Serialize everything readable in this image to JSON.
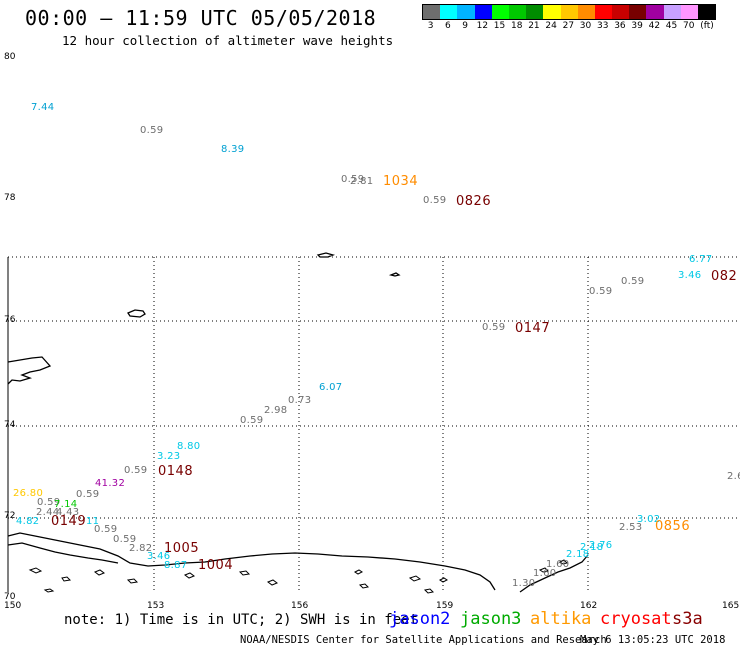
{
  "header": {
    "title": "00:00 – 11:59 UTC 05/05/2018",
    "subtitle": "12 hour collection of altimeter wave heights"
  },
  "colorbar": {
    "colors": [
      "#6e6e6e",
      "#00ffff",
      "#00b4ff",
      "#0000ff",
      "#00ff00",
      "#00c800",
      "#008c00",
      "#ffff00",
      "#ffc800",
      "#ff8c00",
      "#ff0000",
      "#c80000",
      "#780000",
      "#a000a0",
      "#c8a0ff",
      "#ff96ff",
      "#000000"
    ],
    "labels": [
      "3",
      "6",
      "9",
      "12",
      "15",
      "18",
      "21",
      "24",
      "27",
      "30",
      "33",
      "36",
      "39",
      "42",
      "45",
      "70",
      "(ft)"
    ]
  },
  "axes": {
    "y_labels": [
      "80",
      "78",
      "76",
      "74",
      "72",
      "70"
    ],
    "x_labels": [
      "150",
      "153",
      "156",
      "159",
      "162",
      "165"
    ]
  },
  "labels": [
    {
      "text": "7.44",
      "color": "#00a0d2",
      "kind": "wave"
    },
    {
      "text": "0.59",
      "color": "#6e6e6e",
      "kind": "wave"
    },
    {
      "text": "8.39",
      "color": "#00a0d2",
      "kind": "wave"
    },
    {
      "text": "0.59",
      "color": "#6e6e6e",
      "kind": "wave"
    },
    {
      "text": "2.81",
      "color": "#6e6e6e",
      "kind": "wave"
    },
    {
      "text": "1034",
      "color": "#ff8c00",
      "kind": "time"
    },
    {
      "text": "0.59",
      "color": "#6e6e6e",
      "kind": "wave"
    },
    {
      "text": "0826",
      "color": "#780000",
      "kind": "time"
    },
    {
      "text": "6.77",
      "color": "#00c8e6",
      "kind": "wave"
    },
    {
      "text": "3.46",
      "color": "#00c8e6",
      "kind": "wave"
    },
    {
      "text": "082",
      "color": "#780000",
      "kind": "time"
    },
    {
      "text": "0.59",
      "color": "#6e6e6e",
      "kind": "wave"
    },
    {
      "text": "0.59",
      "color": "#6e6e6e",
      "kind": "wave"
    },
    {
      "text": "0.59",
      "color": "#6e6e6e",
      "kind": "wave"
    },
    {
      "text": "0147",
      "color": "#780000",
      "kind": "time"
    },
    {
      "text": "6.07",
      "color": "#00a0d2",
      "kind": "wave"
    },
    {
      "text": "0.73",
      "color": "#6e6e6e",
      "kind": "wave"
    },
    {
      "text": "2.98",
      "color": "#6e6e6e",
      "kind": "wave"
    },
    {
      "text": "0.59",
      "color": "#6e6e6e",
      "kind": "wave"
    },
    {
      "text": "8.80",
      "color": "#00c8e6",
      "kind": "wave"
    },
    {
      "text": "3.23",
      "color": "#00c8e6",
      "kind": "wave"
    },
    {
      "text": "0.59",
      "color": "#6e6e6e",
      "kind": "wave"
    },
    {
      "text": "0148",
      "color": "#780000",
      "kind": "time"
    },
    {
      "text": "41.32",
      "color": "#a000a0",
      "kind": "wave"
    },
    {
      "text": "0.59",
      "color": "#6e6e6e",
      "kind": "wave"
    },
    {
      "text": "26.80",
      "color": "#ffc800",
      "kind": "wave"
    },
    {
      "text": "0.59",
      "color": "#6e6e6e",
      "kind": "wave"
    },
    {
      "text": "7.14",
      "color": "#00c800",
      "kind": "wave"
    },
    {
      "text": "2.44",
      "color": "#6e6e6e",
      "kind": "wave"
    },
    {
      "text": "4.43",
      "color": "#6e6e6e",
      "kind": "wave"
    },
    {
      "text": "4.82",
      "color": "#00c8e6",
      "kind": "wave"
    },
    {
      "text": "0149",
      "color": "#780000",
      "kind": "time"
    },
    {
      "text": "11",
      "color": "#00c8e6",
      "kind": "wave"
    },
    {
      "text": "0.59",
      "color": "#6e6e6e",
      "kind": "wave"
    },
    {
      "text": "0.59",
      "color": "#6e6e6e",
      "kind": "wave"
    },
    {
      "text": "2.82",
      "color": "#6e6e6e",
      "kind": "wave"
    },
    {
      "text": "1005",
      "color": "#780000",
      "kind": "time"
    },
    {
      "text": "3.46",
      "color": "#00c8e6",
      "kind": "wave"
    },
    {
      "text": "8.87",
      "color": "#00c8e6",
      "kind": "wave"
    },
    {
      "text": "1004",
      "color": "#780000",
      "kind": "time"
    },
    {
      "text": "2.6",
      "color": "#6e6e6e",
      "kind": "wave"
    },
    {
      "text": "3.02",
      "color": "#00c8e6",
      "kind": "wave"
    },
    {
      "text": "2.53",
      "color": "#6e6e6e",
      "kind": "wave"
    },
    {
      "text": "0856",
      "color": "#ff8c00",
      "kind": "time"
    },
    {
      "text": "2.76",
      "color": "#00c8e6",
      "kind": "wave"
    },
    {
      "text": "2.18",
      "color": "#00c8e6",
      "kind": "wave"
    },
    {
      "text": "2.18",
      "color": "#00c8e6",
      "kind": "wave"
    },
    {
      "text": "1.60",
      "color": "#6e6e6e",
      "kind": "wave"
    },
    {
      "text": "1.60",
      "color": "#6e6e6e",
      "kind": "wave"
    },
    {
      "text": "1.30",
      "color": "#6e6e6e",
      "kind": "wave"
    }
  ],
  "footer": {
    "note": "note: 1) Time is in UTC; 2) SWH is in feet",
    "satellites": [
      {
        "name": "jason2",
        "color": "#0000ff"
      },
      {
        "name": "jason3",
        "color": "#00aa00"
      },
      {
        "name": "altika",
        "color": "#ff9900"
      },
      {
        "name": "cryosat",
        "color": "#ff0000"
      },
      {
        "name": "s3a",
        "color": "#880000"
      }
    ],
    "credit": "NOAA/NESDIS Center for Satellite Applications and Research",
    "timestamp": "May  6 13:05:23 UTC 2018"
  }
}
